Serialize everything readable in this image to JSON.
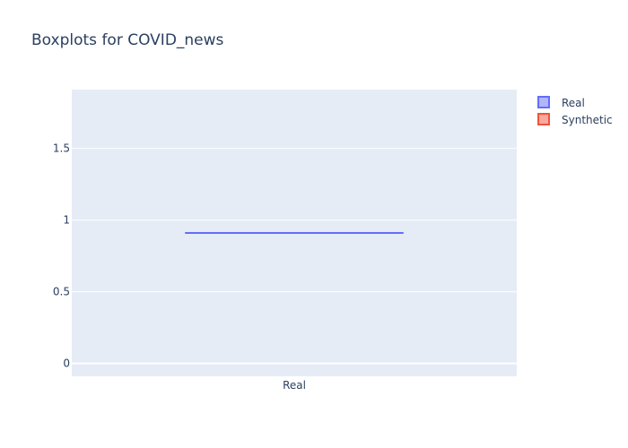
{
  "chart_data": {
    "type": "box",
    "title": "Boxplots for COVID_news",
    "xlabel": "",
    "ylabel": "",
    "categories": [
      "Real"
    ],
    "ylim": [
      -0.09,
      1.91
    ],
    "y_ticks": [
      {
        "value": 0,
        "label": "0"
      },
      {
        "value": 0.5,
        "label": "0.5"
      },
      {
        "value": 1,
        "label": "1"
      },
      {
        "value": 1.5,
        "label": "1.5"
      }
    ],
    "grid": true,
    "legend_placement": "top-right",
    "series": [
      {
        "name": "Real",
        "category": "Real",
        "min": 0.91,
        "q1": 0.91,
        "median": 0.91,
        "q3": 0.91,
        "max": 0.91,
        "color": "#636efa",
        "fill": "#b1b6fc"
      },
      {
        "name": "Synthetic",
        "color": "#ef553b",
        "fill": "#f7aa9d"
      }
    ]
  },
  "colors": {
    "plot_background": "#e5ecf6",
    "grid": "#ffffff",
    "text": "#2a3f5f"
  }
}
